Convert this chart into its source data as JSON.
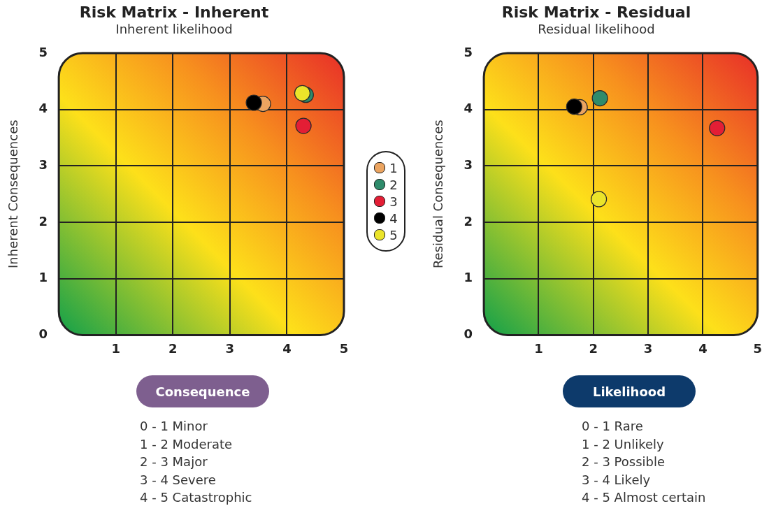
{
  "chart_data": [
    {
      "type": "scatter",
      "title": "Risk Matrix - Inherent",
      "subtitle": "Inherent likelihood",
      "xlabel": "Consequence",
      "ylabel": "Inherent Consequences",
      "xlim": [
        0,
        5
      ],
      "ylim": [
        0,
        5
      ],
      "xticks": [
        1,
        2,
        3,
        4,
        5
      ],
      "yticks": [
        0,
        1,
        2,
        3,
        4,
        5
      ],
      "grid": true,
      "marker": "circle",
      "legend": "right",
      "series": [
        {
          "name": "1",
          "color": "#eba460",
          "x": [
            3.58
          ],
          "values": [
            4.1
          ]
        },
        {
          "name": "2",
          "color": "#2e8b6b",
          "x": [
            4.33
          ],
          "values": [
            4.26
          ]
        },
        {
          "name": "3",
          "color": "#e31e35",
          "x": [
            4.29
          ],
          "values": [
            3.71
          ]
        },
        {
          "name": "4",
          "color": "#000000",
          "x": [
            3.42
          ],
          "values": [
            4.12
          ]
        },
        {
          "name": "5",
          "color": "#ebe42a",
          "x": [
            4.27
          ],
          "values": [
            4.29
          ]
        }
      ],
      "annotations": [
        "0 - 1 Minor",
        "1 - 2 Moderate",
        "2 - 3 Major",
        "3 - 4 Severe",
        "4 - 5 Catastrophic"
      ]
    },
    {
      "type": "scatter",
      "title": "Risk Matrix - Residual",
      "subtitle": "Residual likelihood",
      "xlabel": "Likelihood",
      "ylabel": "Residual Consequences",
      "xlim": [
        0,
        5
      ],
      "ylim": [
        0,
        5
      ],
      "xticks": [
        1,
        2,
        3,
        4,
        5
      ],
      "yticks": [
        0,
        1,
        2,
        3,
        4,
        5
      ],
      "grid": true,
      "marker": "circle",
      "series": [
        {
          "color": "#eba460",
          "x": [
            1.75
          ],
          "values": [
            4.04
          ]
        },
        {
          "color": "#2e8b6b",
          "x": [
            2.12
          ],
          "values": [
            4.2
          ]
        },
        {
          "color": "#e31e35",
          "x": [
            4.26
          ],
          "values": [
            3.67
          ]
        },
        {
          "color": "#000000",
          "x": [
            1.65
          ],
          "values": [
            4.05
          ]
        },
        {
          "color": "#ebe42a",
          "x": [
            2.1
          ],
          "values": [
            2.41
          ]
        }
      ],
      "annotations": [
        "0 - 1 Rare",
        "1 - 2 Unlikely",
        "2 - 3 Possible",
        "3 - 4 Likely",
        "4 - 5 Almost certain"
      ]
    }
  ]
}
